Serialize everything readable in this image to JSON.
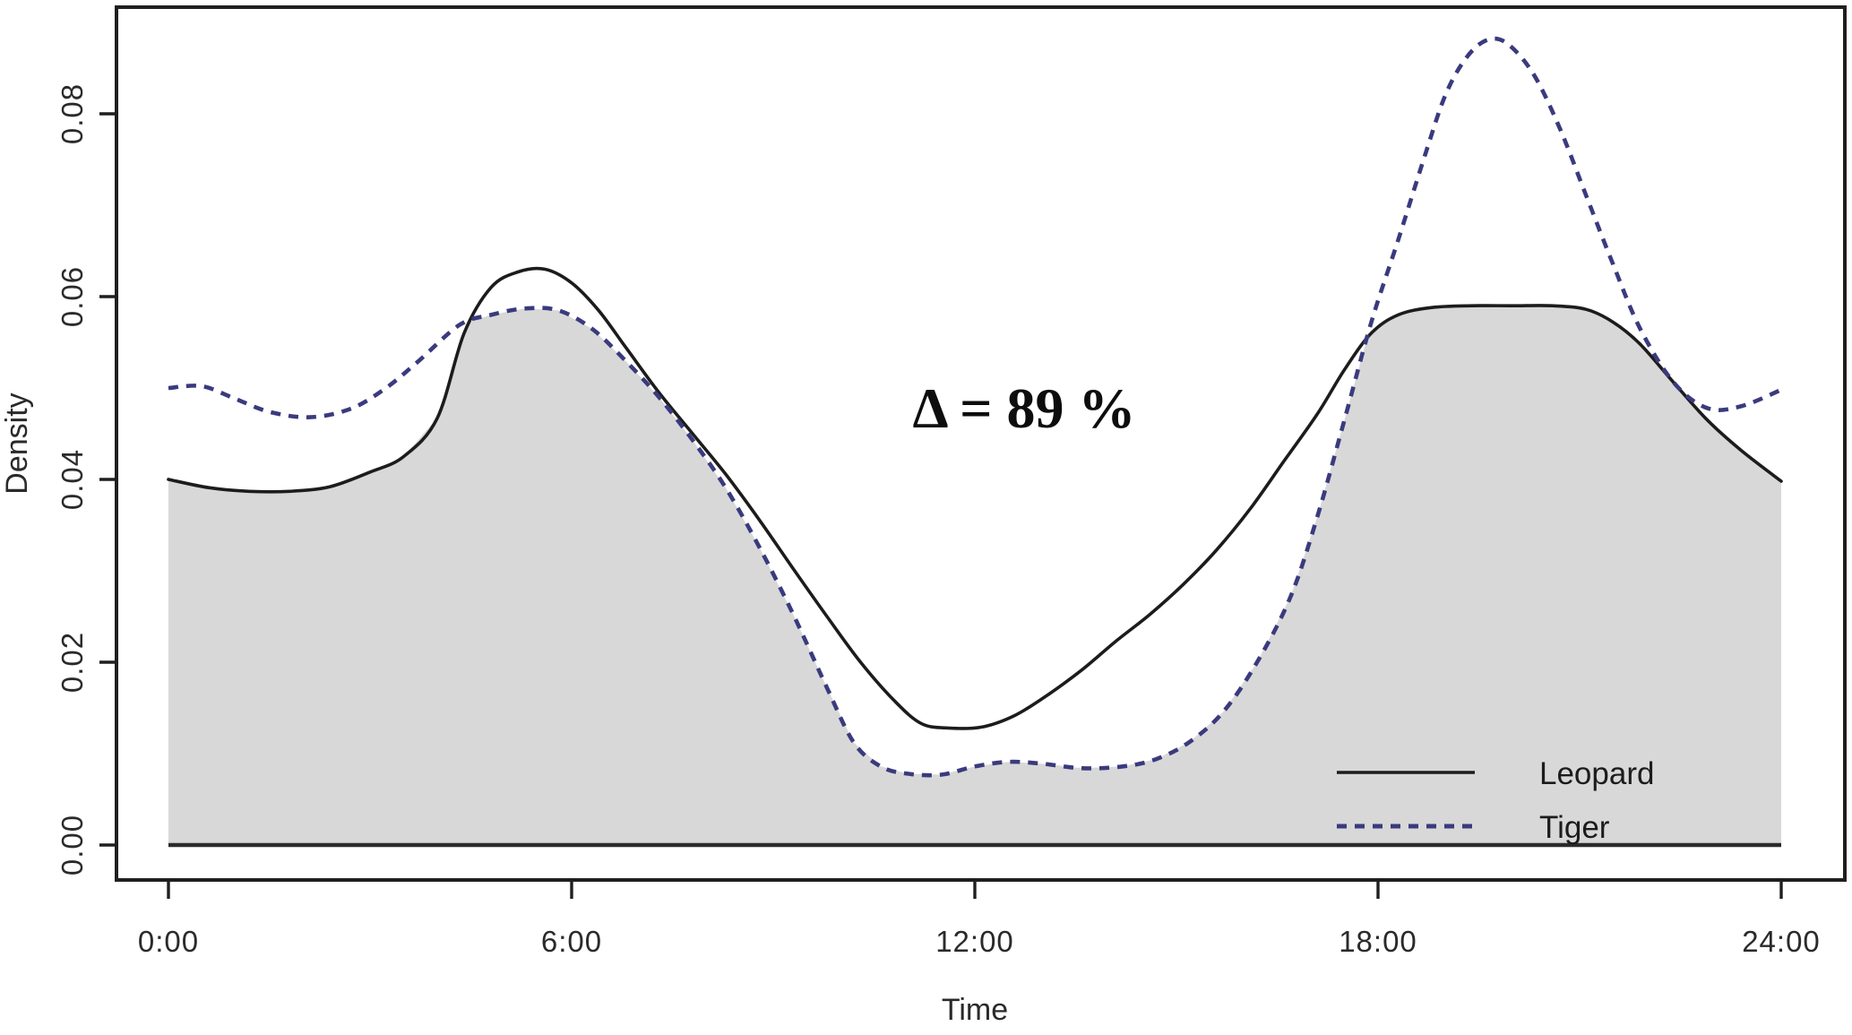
{
  "chart_data": {
    "type": "area",
    "title": "",
    "xlabel": "Time",
    "ylabel": "Density",
    "annotation": "Δ = 89 %",
    "grid": false,
    "xlim_hours": [
      0,
      24
    ],
    "ylim": [
      0,
      0.0917
    ],
    "x_tick_labels": [
      "0:00",
      "6:00",
      "12:00",
      "18:00",
      "24:00"
    ],
    "x_tick_hours": [
      0,
      6,
      12,
      18,
      24
    ],
    "y_tick_labels": [
      "0.00",
      "0.02",
      "0.04",
      "0.06",
      "0.08"
    ],
    "y_tick_values": [
      0,
      0.02,
      0.04,
      0.06,
      0.08
    ],
    "legend_position": "bottom-right-inside",
    "legend": [
      {
        "label": "Leopard",
        "style": "solid",
        "color": "#1c1c1c"
      },
      {
        "label": "Tiger",
        "style": "dashed",
        "color": "#3a3a7e"
      }
    ],
    "shaded_area": {
      "name": "overlap-of-densities",
      "color": "#d8d8d8",
      "rule": "minimum of the two series"
    },
    "series": [
      {
        "name": "Leopard",
        "style": "solid",
        "color": "#1c1c1c",
        "points": [
          [
            0,
            0.04
          ],
          [
            0.6,
            0.0391
          ],
          [
            1.2,
            0.0387
          ],
          [
            1.8,
            0.0387
          ],
          [
            2.4,
            0.0392
          ],
          [
            3.0,
            0.0408
          ],
          [
            3.5,
            0.0425
          ],
          [
            4.0,
            0.0467
          ],
          [
            4.4,
            0.056
          ],
          [
            4.8,
            0.061
          ],
          [
            5.2,
            0.0627
          ],
          [
            5.6,
            0.063
          ],
          [
            6.0,
            0.0615
          ],
          [
            6.4,
            0.0585
          ],
          [
            6.8,
            0.0545
          ],
          [
            7.3,
            0.0495
          ],
          [
            7.8,
            0.045
          ],
          [
            8.3,
            0.0405
          ],
          [
            8.8,
            0.0355
          ],
          [
            9.3,
            0.0302
          ],
          [
            9.8,
            0.025
          ],
          [
            10.3,
            0.02
          ],
          [
            10.8,
            0.0158
          ],
          [
            11.2,
            0.0133
          ],
          [
            11.6,
            0.0128
          ],
          [
            12.1,
            0.0129
          ],
          [
            12.6,
            0.0142
          ],
          [
            13.1,
            0.0165
          ],
          [
            13.6,
            0.0192
          ],
          [
            14.1,
            0.0223
          ],
          [
            14.6,
            0.0252
          ],
          [
            15.1,
            0.0285
          ],
          [
            15.6,
            0.0323
          ],
          [
            16.1,
            0.0368
          ],
          [
            16.6,
            0.042
          ],
          [
            17.1,
            0.0472
          ],
          [
            17.5,
            0.052
          ],
          [
            17.9,
            0.056
          ],
          [
            18.3,
            0.058
          ],
          [
            18.8,
            0.0588
          ],
          [
            19.4,
            0.059
          ],
          [
            20.0,
            0.059
          ],
          [
            20.6,
            0.059
          ],
          [
            21.1,
            0.0586
          ],
          [
            21.5,
            0.0572
          ],
          [
            21.9,
            0.0548
          ],
          [
            22.4,
            0.0506
          ],
          [
            22.9,
            0.0465
          ],
          [
            23.4,
            0.0432
          ],
          [
            24,
            0.0398
          ]
        ]
      },
      {
        "name": "Tiger",
        "style": "dashed",
        "color": "#3a3a7e",
        "points": [
          [
            0,
            0.05
          ],
          [
            0.5,
            0.0502
          ],
          [
            1.0,
            0.0488
          ],
          [
            1.5,
            0.0474
          ],
          [
            2.1,
            0.0468
          ],
          [
            2.7,
            0.0477
          ],
          [
            3.2,
            0.0498
          ],
          [
            3.7,
            0.0528
          ],
          [
            4.33,
            0.0569
          ],
          [
            4.8,
            0.058
          ],
          [
            5.3,
            0.0587
          ],
          [
            5.8,
            0.0585
          ],
          [
            6.3,
            0.0565
          ],
          [
            6.8,
            0.053
          ],
          [
            7.3,
            0.049
          ],
          [
            7.8,
            0.0443
          ],
          [
            8.3,
            0.039
          ],
          [
            8.8,
            0.0325
          ],
          [
            9.3,
            0.0252
          ],
          [
            9.8,
            0.0172
          ],
          [
            10.2,
            0.0112
          ],
          [
            10.6,
            0.0086
          ],
          [
            11.0,
            0.0078
          ],
          [
            11.5,
            0.0077
          ],
          [
            12.0,
            0.0086
          ],
          [
            12.5,
            0.0091
          ],
          [
            13.0,
            0.0089
          ],
          [
            13.6,
            0.0084
          ],
          [
            14.2,
            0.0086
          ],
          [
            14.7,
            0.0094
          ],
          [
            15.2,
            0.0113
          ],
          [
            15.7,
            0.0146
          ],
          [
            16.2,
            0.02
          ],
          [
            16.7,
            0.0272
          ],
          [
            17.1,
            0.036
          ],
          [
            17.5,
            0.0465
          ],
          [
            17.9,
            0.0572
          ],
          [
            18.3,
            0.0662
          ],
          [
            18.7,
            0.0755
          ],
          [
            19.0,
            0.082
          ],
          [
            19.3,
            0.086
          ],
          [
            19.6,
            0.088
          ],
          [
            19.9,
            0.0878
          ],
          [
            20.3,
            0.0845
          ],
          [
            20.7,
            0.0785
          ],
          [
            21.1,
            0.071
          ],
          [
            21.5,
            0.0635
          ],
          [
            21.9,
            0.0565
          ],
          [
            22.4,
            0.0506
          ],
          [
            22.9,
            0.0478
          ],
          [
            23.4,
            0.048
          ],
          [
            24,
            0.0498
          ]
        ]
      }
    ],
    "colors": {
      "axis_text": "#2a2a2a",
      "axis_line": "#1f1f1f",
      "baseline": "#2b2b2b",
      "background": "#ffffff"
    }
  }
}
